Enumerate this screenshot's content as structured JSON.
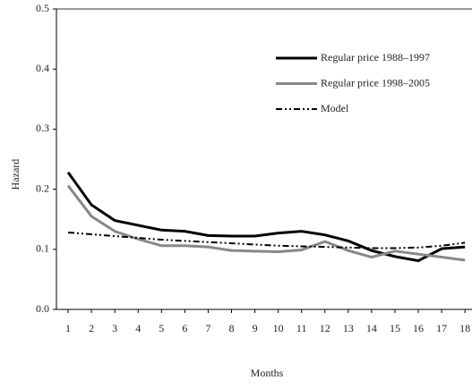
{
  "chart_data": {
    "type": "line",
    "x_label": "Months",
    "y_label": "Hazard",
    "x": [
      1,
      2,
      3,
      4,
      5,
      6,
      7,
      8,
      9,
      10,
      11,
      12,
      13,
      14,
      15,
      16,
      17,
      18
    ],
    "xlim": [
      0.5,
      18.3
    ],
    "xticks": [
      1,
      2,
      3,
      4,
      5,
      6,
      7,
      8,
      9,
      10,
      11,
      12,
      13,
      14,
      15,
      16,
      17,
      18
    ],
    "ylim": [
      0,
      0.5
    ],
    "yticks": [
      {
        "value": 0,
        "label": "0.0"
      },
      0.1,
      0.2,
      0.3,
      0.4,
      0.5
    ],
    "series": [
      {
        "name": "Regular price 1988–1997",
        "color": "#000000",
        "style": "solid",
        "values": [
          0.228,
          0.174,
          0.148,
          0.14,
          0.132,
          0.13,
          0.123,
          0.122,
          0.122,
          0.127,
          0.13,
          0.124,
          0.114,
          0.098,
          0.088,
          0.081,
          0.101,
          0.104
        ]
      },
      {
        "name": "Regular price 1998–2005",
        "color": "#888888",
        "style": "solid",
        "values": [
          0.206,
          0.155,
          0.13,
          0.117,
          0.106,
          0.106,
          0.104,
          0.098,
          0.097,
          0.096,
          0.099,
          0.113,
          0.098,
          0.087,
          0.097,
          0.092,
          0.087,
          0.082
        ]
      },
      {
        "name": "Model",
        "color": "#000000",
        "style": "dashdotdot",
        "values": [
          0.128,
          0.125,
          0.122,
          0.119,
          0.116,
          0.114,
          0.112,
          0.11,
          0.108,
          0.106,
          0.105,
          0.104,
          0.103,
          0.102,
          0.102,
          0.103,
          0.106,
          0.111
        ]
      }
    ]
  }
}
